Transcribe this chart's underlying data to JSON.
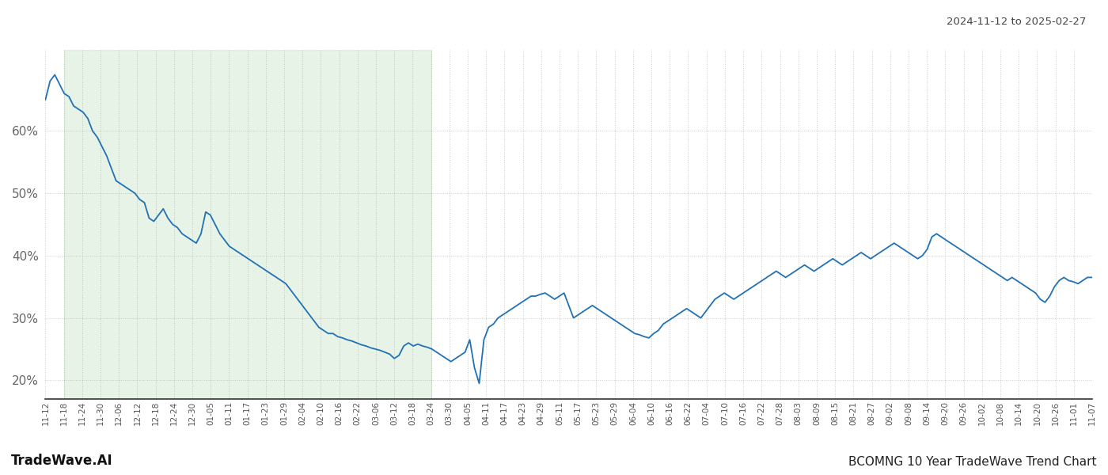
{
  "title_date_range": "2024-11-12 to 2025-02-27",
  "footer_left": "TradeWave.AI",
  "footer_right": "BCOMNG 10 Year TradeWave Trend Chart",
  "line_color": "#2171b5",
  "line_width": 1.3,
  "bg_color": "#ffffff",
  "shaded_region_color": "#c8e6c8",
  "shaded_region_alpha": 0.45,
  "ylim": [
    17,
    73
  ],
  "yticks": [
    20,
    30,
    40,
    50,
    60
  ],
  "grid_color": "#999999",
  "grid_alpha": 0.5,
  "x_labels": [
    "11-12",
    "11-18",
    "11-24",
    "11-30",
    "12-06",
    "12-12",
    "12-18",
    "12-24",
    "12-30",
    "01-05",
    "01-11",
    "01-17",
    "01-23",
    "01-29",
    "02-04",
    "02-10",
    "02-16",
    "02-22",
    "03-06",
    "03-12",
    "03-18",
    "03-24",
    "03-30",
    "04-05",
    "04-11",
    "04-17",
    "04-23",
    "04-29",
    "05-11",
    "05-17",
    "05-23",
    "05-29",
    "06-04",
    "06-10",
    "06-16",
    "06-22",
    "07-04",
    "07-10",
    "07-16",
    "07-22",
    "07-28",
    "08-03",
    "08-09",
    "08-15",
    "08-21",
    "08-27",
    "09-02",
    "09-08",
    "09-14",
    "09-20",
    "09-26",
    "10-02",
    "10-08",
    "10-14",
    "10-20",
    "10-26",
    "11-01",
    "11-07"
  ],
  "shaded_x_start_label": "11-18",
  "shaded_x_end_label": "03-24",
  "values": [
    65.0,
    68.0,
    69.0,
    67.5,
    66.0,
    65.5,
    64.0,
    63.5,
    63.0,
    62.0,
    60.0,
    59.0,
    57.5,
    56.0,
    54.0,
    52.0,
    51.5,
    51.0,
    50.5,
    50.0,
    49.0,
    48.5,
    46.0,
    45.5,
    46.5,
    47.5,
    46.0,
    45.0,
    44.5,
    43.5,
    43.0,
    42.5,
    42.0,
    43.5,
    47.0,
    46.5,
    45.0,
    43.5,
    42.5,
    41.5,
    41.0,
    40.5,
    40.0,
    39.5,
    39.0,
    38.5,
    38.0,
    37.5,
    37.0,
    36.5,
    36.0,
    35.5,
    34.5,
    33.5,
    32.5,
    31.5,
    30.5,
    29.5,
    28.5,
    28.0,
    27.5,
    27.5,
    27.0,
    26.8,
    26.5,
    26.3,
    26.0,
    25.7,
    25.5,
    25.2,
    25.0,
    24.8,
    24.5,
    24.2,
    23.5,
    24.0,
    25.5,
    26.0,
    25.5,
    25.8,
    25.5,
    25.3,
    25.0,
    24.5,
    24.0,
    23.5,
    23.0,
    23.5,
    24.0,
    24.5,
    26.5,
    22.0,
    19.5,
    26.5,
    28.5,
    29.0,
    30.0,
    30.5,
    31.0,
    31.5,
    32.0,
    32.5,
    33.0,
    33.5,
    33.5,
    33.8,
    34.0,
    33.5,
    33.0,
    33.5,
    34.0,
    32.0,
    30.0,
    30.5,
    31.0,
    31.5,
    32.0,
    31.5,
    31.0,
    30.5,
    30.0,
    29.5,
    29.0,
    28.5,
    28.0,
    27.5,
    27.3,
    27.0,
    26.8,
    27.5,
    28.0,
    29.0,
    29.5,
    30.0,
    30.5,
    31.0,
    31.5,
    31.0,
    30.5,
    30.0,
    31.0,
    32.0,
    33.0,
    33.5,
    34.0,
    33.5,
    33.0,
    33.5,
    34.0,
    34.5,
    35.0,
    35.5,
    36.0,
    36.5,
    37.0,
    37.5,
    37.0,
    36.5,
    37.0,
    37.5,
    38.0,
    38.5,
    38.0,
    37.5,
    38.0,
    38.5,
    39.0,
    39.5,
    39.0,
    38.5,
    39.0,
    39.5,
    40.0,
    40.5,
    40.0,
    39.5,
    40.0,
    40.5,
    41.0,
    41.5,
    42.0,
    41.5,
    41.0,
    40.5,
    40.0,
    39.5,
    40.0,
    41.0,
    43.0,
    43.5,
    43.0,
    42.5,
    42.0,
    41.5,
    41.0,
    40.5,
    40.0,
    39.5,
    39.0,
    38.5,
    38.0,
    37.5,
    37.0,
    36.5,
    36.0,
    36.5,
    36.0,
    35.5,
    35.0,
    34.5,
    34.0,
    33.0,
    32.5,
    33.5,
    35.0,
    36.0,
    36.5,
    36.0,
    35.8,
    35.5,
    36.0,
    36.5,
    36.5
  ]
}
